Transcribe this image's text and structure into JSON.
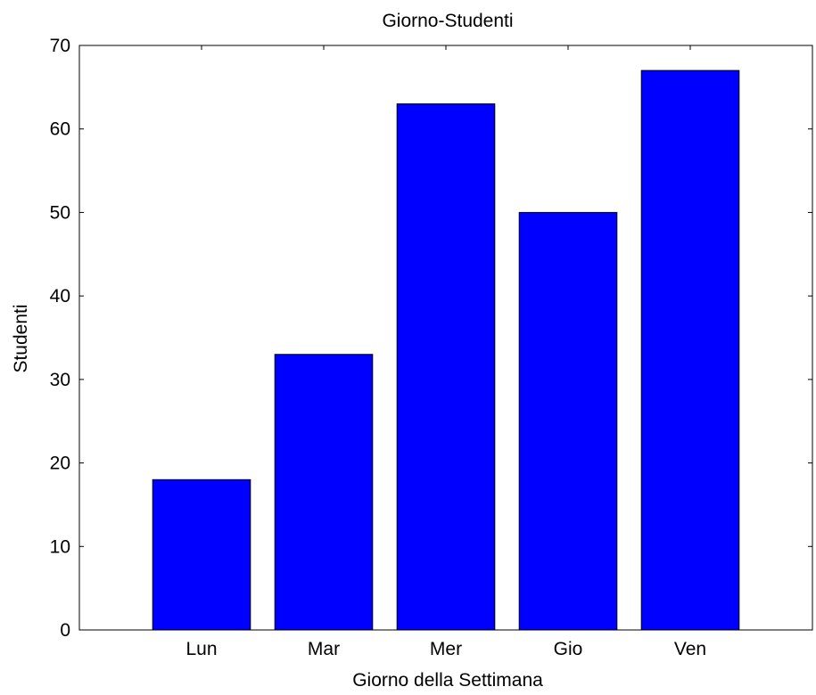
{
  "chart_data": {
    "type": "bar",
    "title": "Giorno-Studenti",
    "xlabel": "Giorno della Settimana",
    "ylabel": "Studenti",
    "categories": [
      "Lun",
      "Mar",
      "Mer",
      "Gio",
      "Ven"
    ],
    "values": [
      18,
      33,
      63,
      50,
      67
    ],
    "ylim": [
      0,
      70
    ],
    "yticks": [
      "0",
      "10",
      "20",
      "30",
      "40",
      "50",
      "60",
      "70"
    ],
    "bar_color": "#0000ff",
    "bar_edge_color": "#000000",
    "grid": false
  }
}
